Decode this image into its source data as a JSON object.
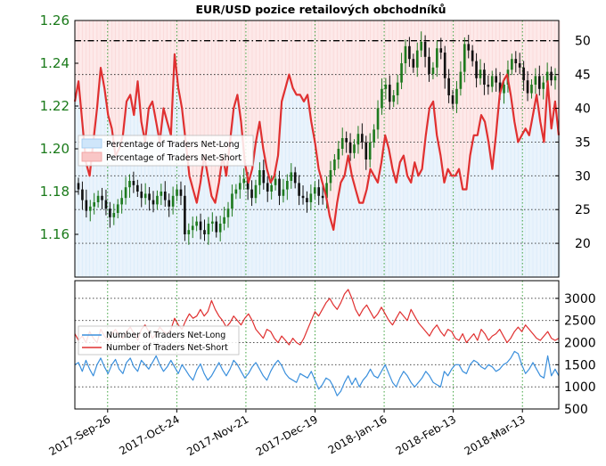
{
  "chart_data": [
    {
      "type": "candlestick+line",
      "title": "EUR/USD pozice retailových obchodníků",
      "x_tick_labels": [
        "2017-Sep-26",
        "2017-Oct-24",
        "2017-Nov-21",
        "2017-Dec-19",
        "2018-Jan-16",
        "2018-Feb-13",
        "2018-Mar-13"
      ],
      "left_axis": {
        "ylim": [
          1.14,
          1.26
        ],
        "ticks": [
          1.16,
          1.18,
          1.2,
          1.22,
          1.24,
          1.26
        ],
        "tick_labels": [
          "1.16",
          "1.18",
          "1.20",
          "1.22",
          "1.24",
          "1.26"
        ],
        "color": "#1a7a1a"
      },
      "right_axis": {
        "ylim": [
          15,
          53
        ],
        "ticks": [
          20,
          25,
          30,
          35,
          40,
          45,
          50
        ],
        "tick_labels": [
          "20",
          "25",
          "30",
          "35",
          "40",
          "45",
          "50"
        ]
      },
      "reference_line": 50,
      "legend": {
        "placement": "left",
        "entries": [
          "Percentage of Traders Net-Long",
          "Percentage of Traders Net-Short"
        ]
      },
      "candles_close": [
        1.181,
        1.176,
        1.171,
        1.173,
        1.175,
        1.178,
        1.176,
        1.172,
        1.168,
        1.17,
        1.174,
        1.177,
        1.182,
        1.185,
        1.183,
        1.18,
        1.177,
        1.179,
        1.176,
        1.174,
        1.178,
        1.18,
        1.176,
        1.173,
        1.178,
        1.181,
        1.178,
        1.16,
        1.162,
        1.164,
        1.166,
        1.162,
        1.16,
        1.165,
        1.166,
        1.161,
        1.165,
        1.168,
        1.172,
        1.179,
        1.181,
        1.184,
        1.186,
        1.181,
        1.177,
        1.183,
        1.19,
        1.184,
        1.18,
        1.183,
        1.186,
        1.178,
        1.181,
        1.185,
        1.189,
        1.184,
        1.178,
        1.177,
        1.175,
        1.179,
        1.182,
        1.178,
        1.177,
        1.184,
        1.19,
        1.195,
        1.2,
        1.205,
        1.203,
        1.198,
        1.202,
        1.207,
        1.203,
        1.195,
        1.203,
        1.209,
        1.219,
        1.228,
        1.23,
        1.222,
        1.225,
        1.231,
        1.24,
        1.248,
        1.242,
        1.238,
        1.246,
        1.25,
        1.243,
        1.235,
        1.238,
        1.247,
        1.245,
        1.233,
        1.225,
        1.221,
        1.228,
        1.236,
        1.249,
        1.246,
        1.241,
        1.233,
        1.237,
        1.23,
        1.229,
        1.234,
        1.231,
        1.226,
        1.23,
        1.237,
        1.242,
        1.24,
        1.238,
        1.232,
        1.226,
        1.23,
        1.234,
        1.228,
        1.231,
        1.236,
        1.232,
        1.234
      ],
      "series": [
        {
          "name": "Percentage of Traders Net-Short",
          "color": "#e03030",
          "values": [
            41,
            44,
            38,
            32,
            30,
            35,
            40,
            46,
            43,
            39,
            37,
            33,
            34,
            36,
            41,
            42,
            39,
            44,
            38,
            35,
            40,
            41,
            38,
            35,
            40,
            38,
            36,
            48,
            43,
            40,
            35,
            30,
            28,
            26,
            29,
            33,
            30,
            27,
            26,
            29,
            33,
            30,
            35,
            40,
            42,
            38,
            32,
            29,
            31,
            35,
            38,
            34,
            31,
            29,
            30,
            33,
            41,
            43,
            45,
            43,
            42,
            42,
            41,
            42,
            38,
            35,
            31,
            29,
            27,
            24,
            22,
            26,
            29,
            30,
            33,
            30,
            28,
            26,
            26,
            28,
            31,
            30,
            29,
            32,
            36,
            34,
            31,
            29,
            32,
            33,
            30,
            29,
            32,
            30,
            31,
            36,
            40,
            41,
            36,
            33,
            29,
            31,
            30,
            30,
            31,
            28,
            28,
            33,
            36,
            36,
            39,
            38,
            35,
            31,
            36,
            42,
            44,
            45,
            42,
            38,
            35,
            36,
            37,
            36,
            39,
            42,
            38,
            35,
            44,
            37,
            41,
            36
          ]
        }
      ]
    },
    {
      "type": "line",
      "x_tick_labels": [
        "2017-Sep-26",
        "2017-Oct-24",
        "2017-Nov-21",
        "2017-Dec-19",
        "2018-Jan-16",
        "2018-Feb-13",
        "2018-Mar-13"
      ],
      "y_axis": {
        "ylim": [
          500,
          3400
        ],
        "ticks": [
          500,
          1000,
          1500,
          2000,
          2500,
          3000
        ],
        "tick_labels": [
          "500",
          "1000",
          "1500",
          "2000",
          "2500",
          "3000"
        ]
      },
      "legend": {
        "placement": "left",
        "entries": [
          "Number of Traders Net-Long",
          "Number of Traders Net-Short"
        ]
      },
      "series": [
        {
          "name": "Number of Traders Net-Long",
          "color": "#3a8fdc",
          "values": [
            1500,
            1550,
            1350,
            1600,
            1400,
            1250,
            1500,
            1650,
            1450,
            1300,
            1500,
            1620,
            1400,
            1300,
            1550,
            1650,
            1450,
            1350,
            1600,
            1500,
            1400,
            1550,
            1700,
            1500,
            1350,
            1450,
            1600,
            1450,
            1300,
            1500,
            1380,
            1250,
            1150,
            1380,
            1520,
            1300,
            1150,
            1250,
            1400,
            1550,
            1380,
            1250,
            1400,
            1600,
            1500,
            1350,
            1200,
            1300,
            1450,
            1550,
            1400,
            1250,
            1150,
            1350,
            1500,
            1600,
            1480,
            1300,
            1200,
            1150,
            1100,
            1300,
            1250,
            1200,
            1350,
            1150,
            950,
            1050,
            1200,
            1150,
            1000,
            800,
            900,
            1100,
            1250,
            1050,
            1200,
            1000,
            1150,
            1250,
            1400,
            1250,
            1200,
            1350,
            1500,
            1300,
            1100,
            1000,
            1200,
            1350,
            1250,
            1100,
            1000,
            1100,
            1200,
            1350,
            1250,
            1100,
            1050,
            1000,
            1350,
            1250,
            1400,
            1500,
            1500,
            1350,
            1300,
            1500,
            1600,
            1550,
            1450,
            1400,
            1500,
            1450,
            1350,
            1400,
            1500,
            1550,
            1650,
            1800,
            1750,
            1500,
            1300,
            1400,
            1550,
            1400,
            1250,
            1200,
            1700,
            1250,
            1400,
            1250
          ]
        },
        {
          "name": "Number of Traders Net-Short",
          "color": "#e03030",
          "values": [
            2200,
            2050,
            2150,
            2000,
            2250,
            2100,
            2000,
            2300,
            2150,
            2050,
            2200,
            2300,
            2150,
            2100,
            2250,
            2350,
            2200,
            2050,
            2300,
            2400,
            2250,
            2100,
            2200,
            2350,
            2250,
            2200,
            2300,
            2550,
            2400,
            2300,
            2500,
            2650,
            2550,
            2600,
            2750,
            2600,
            2700,
            2950,
            2750,
            2600,
            2500,
            2350,
            2450,
            2600,
            2500,
            2400,
            2550,
            2650,
            2500,
            2300,
            2200,
            2100,
            2300,
            2250,
            2100,
            2000,
            2150,
            2050,
            1950,
            2100,
            2000,
            1950,
            2100,
            2300,
            2500,
            2700,
            2600,
            2750,
            2900,
            3000,
            2850,
            2750,
            2900,
            3100,
            3200,
            3000,
            2750,
            2600,
            2750,
            2850,
            2700,
            2550,
            2650,
            2800,
            2650,
            2500,
            2400,
            2550,
            2700,
            2600,
            2500,
            2750,
            2600,
            2450,
            2350,
            2250,
            2150,
            2300,
            2400,
            2250,
            2150,
            2300,
            2250,
            2100,
            2050,
            2200,
            2000,
            2100,
            2200,
            2050,
            2300,
            2200,
            2050,
            2150,
            2200,
            2300,
            2150,
            2000,
            2100,
            2250,
            2350,
            2250,
            2400,
            2300,
            2200,
            2100,
            2050,
            2150,
            2250,
            2100,
            2050,
            2100
          ]
        }
      ]
    }
  ]
}
